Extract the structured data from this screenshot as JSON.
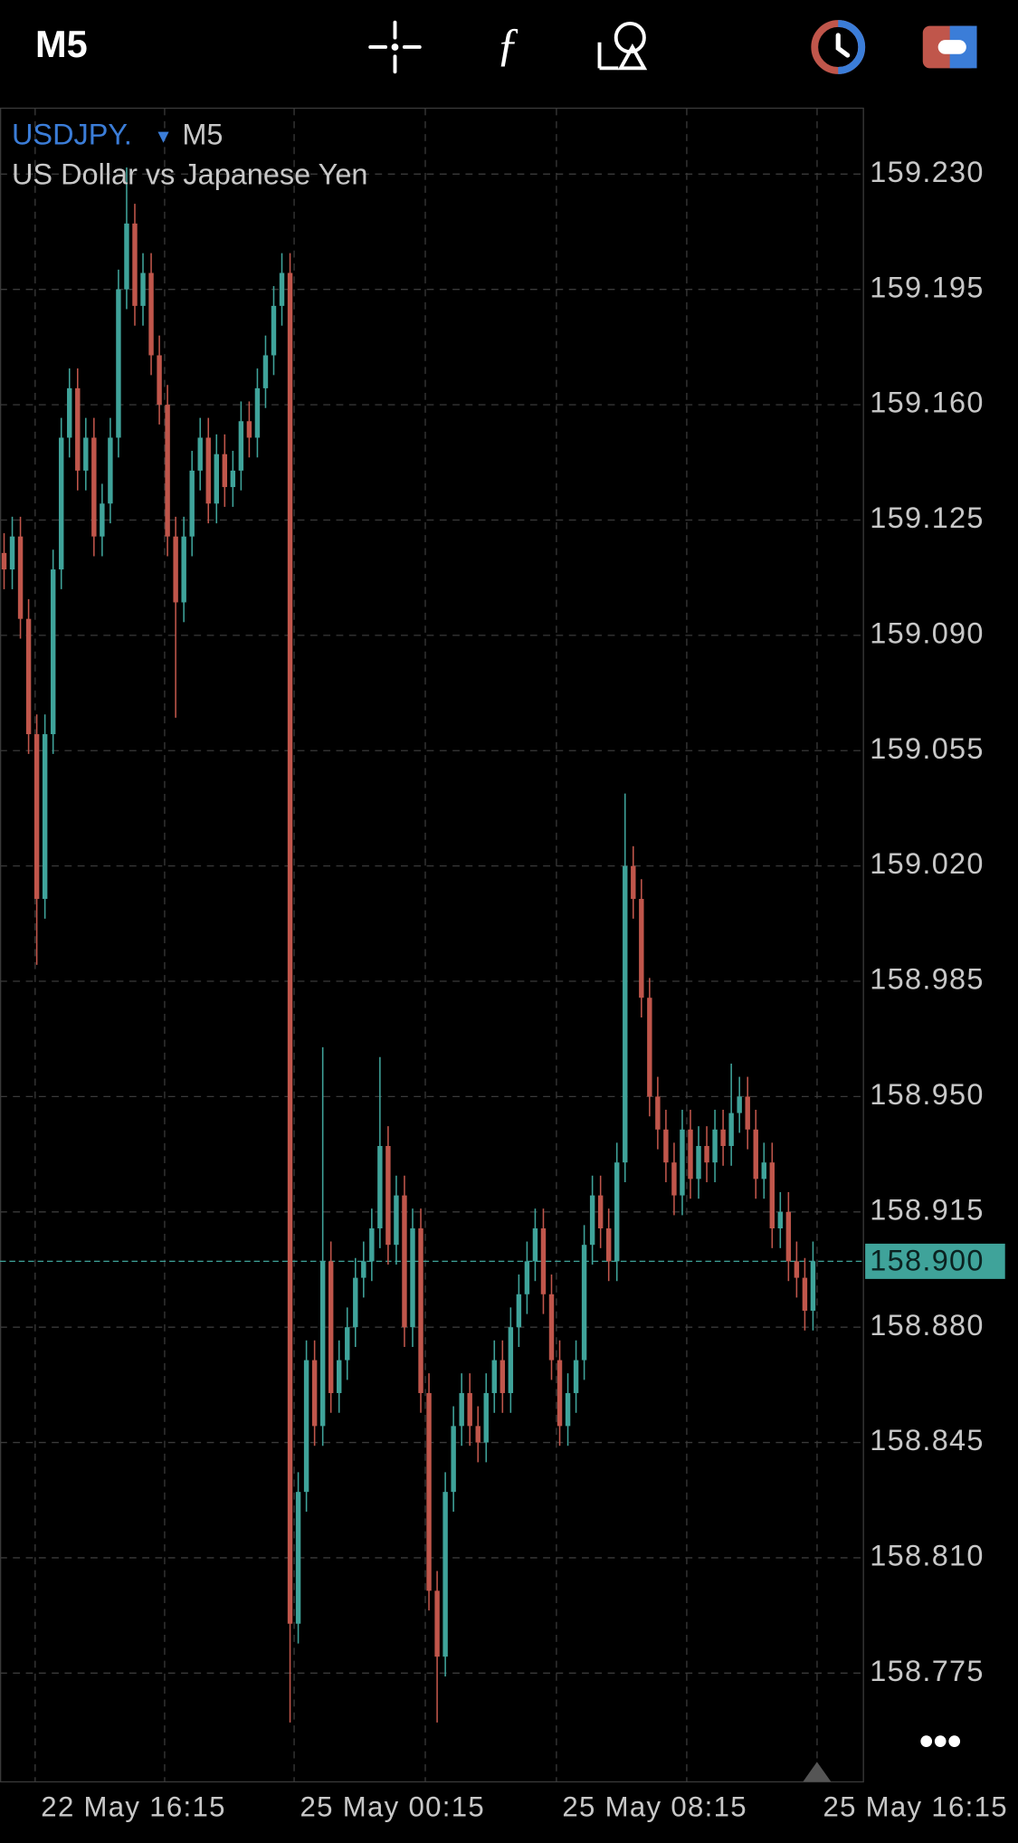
{
  "toolbar": {
    "timeframe": "M5"
  },
  "chart_data": {
    "type": "candlestick",
    "title": "USDJPY.",
    "timeframe": "M5",
    "subtitle": "US Dollar vs Japanese Yen",
    "up_color": "#3fa39a",
    "down_color": "#c0564b",
    "grid": true,
    "xlim": [
      0,
      105.6
    ],
    "xticks": [
      {
        "value": 4.3,
        "label": "22 May 16:15"
      },
      {
        "value": 36,
        "label": "25 May 00:15"
      },
      {
        "value": 68.1,
        "label": "25 May 08:15"
      },
      {
        "value": 100,
        "label": "25 May 16:15"
      }
    ],
    "ylim": [
      158.742,
      159.25
    ],
    "yticks": [
      {
        "value": 159.23,
        "label": "159.230"
      },
      159.195,
      {
        "value": 159.16,
        "label": "159.160"
      },
      159.125,
      {
        "value": 159.09,
        "label": "159.090"
      },
      159.055,
      {
        "value": 159.02,
        "label": "159.020"
      },
      158.985,
      {
        "value": 158.95,
        "label": "158.950"
      },
      158.915,
      {
        "value": 158.88,
        "label": "158.880"
      },
      158.845,
      {
        "value": 158.81,
        "label": "158.810"
      },
      158.775
    ],
    "last_price": {
      "value": 158.9,
      "label": "158.900"
    },
    "open": [
      159.115,
      159.11,
      159.12,
      159.095,
      159.06,
      159.01,
      159.06,
      159.11,
      159.15,
      159.165,
      159.14,
      159.15,
      159.12,
      159.13,
      159.15,
      159.195,
      159.215,
      159.19,
      159.2,
      159.175,
      159.16,
      159.12,
      159.1,
      159.12,
      159.14,
      159.15,
      159.13,
      159.145,
      159.135,
      159.14,
      159.155,
      159.15,
      159.165,
      159.175,
      159.19,
      159.2,
      158.79,
      158.83,
      158.87,
      158.85,
      158.9,
      158.86,
      158.87,
      158.88,
      158.895,
      158.9,
      158.91,
      158.935,
      158.905,
      158.92,
      158.88,
      158.91,
      158.86,
      158.8,
      158.78,
      158.83,
      158.85,
      158.86,
      158.85,
      158.845,
      158.86,
      158.87,
      158.86,
      158.88,
      158.89,
      158.9,
      158.91,
      158.89,
      158.87,
      158.85,
      158.86,
      158.87,
      158.905,
      158.92,
      158.91,
      158.9,
      158.93,
      159.02,
      159.01,
      158.98,
      158.95,
      158.94,
      158.93,
      158.92,
      158.94,
      158.925,
      158.935,
      158.93,
      158.94,
      158.935,
      158.945,
      158.95,
      158.94,
      158.925,
      158.93,
      158.91,
      158.915,
      158.9,
      158.895,
      158.885
    ],
    "high": [
      159.121,
      159.126,
      159.126,
      159.101,
      159.066,
      159.066,
      159.116,
      159.156,
      159.171,
      159.171,
      159.156,
      159.156,
      159.136,
      159.156,
      159.201,
      159.232,
      159.221,
      159.206,
      159.206,
      159.181,
      159.166,
      159.126,
      159.126,
      159.146,
      159.156,
      159.156,
      159.151,
      159.151,
      159.146,
      159.161,
      159.161,
      159.171,
      159.181,
      159.196,
      159.206,
      159.206,
      158.836,
      158.876,
      158.876,
      158.965,
      158.906,
      158.876,
      158.886,
      158.901,
      158.906,
      158.916,
      158.962,
      158.941,
      158.926,
      158.926,
      158.916,
      158.916,
      158.866,
      158.806,
      158.836,
      158.856,
      158.866,
      158.866,
      158.856,
      158.866,
      158.876,
      158.876,
      158.886,
      158.896,
      158.906,
      158.916,
      158.916,
      158.896,
      158.876,
      158.866,
      158.876,
      158.911,
      158.926,
      158.926,
      158.916,
      158.936,
      159.042,
      159.026,
      159.016,
      158.986,
      158.956,
      158.946,
      158.936,
      158.946,
      158.946,
      158.941,
      158.941,
      158.946,
      158.946,
      158.96,
      158.956,
      158.956,
      158.946,
      158.936,
      158.936,
      158.921,
      158.921,
      158.906,
      158.901,
      158.906
    ],
    "low": [
      159.104,
      159.104,
      159.089,
      159.054,
      158.99,
      159.004,
      159.054,
      159.104,
      159.144,
      159.134,
      159.134,
      159.114,
      159.114,
      159.124,
      159.144,
      159.189,
      159.184,
      159.184,
      159.169,
      159.154,
      159.114,
      159.065,
      159.094,
      159.114,
      159.134,
      159.124,
      159.124,
      159.129,
      159.129,
      159.134,
      159.144,
      159.144,
      159.159,
      159.169,
      159.184,
      158.76,
      158.784,
      158.824,
      158.844,
      158.844,
      158.854,
      158.854,
      158.864,
      158.874,
      158.889,
      158.894,
      158.904,
      158.899,
      158.899,
      158.874,
      158.874,
      158.854,
      158.794,
      158.76,
      158.774,
      158.824,
      158.844,
      158.844,
      158.839,
      158.839,
      158.854,
      158.854,
      158.854,
      158.874,
      158.884,
      158.894,
      158.884,
      158.864,
      158.844,
      158.844,
      158.854,
      158.864,
      158.899,
      158.904,
      158.894,
      158.894,
      158.924,
      159.004,
      158.974,
      158.944,
      158.934,
      158.924,
      158.914,
      158.914,
      158.919,
      158.919,
      158.924,
      158.924,
      158.929,
      158.929,
      158.939,
      158.934,
      158.919,
      158.919,
      158.904,
      158.904,
      158.894,
      158.889,
      158.879,
      158.879
    ],
    "close": [
      159.11,
      159.12,
      159.095,
      159.06,
      159.01,
      159.06,
      159.11,
      159.15,
      159.165,
      159.14,
      159.15,
      159.12,
      159.13,
      159.15,
      159.195,
      159.215,
      159.19,
      159.2,
      159.175,
      159.16,
      159.12,
      159.1,
      159.12,
      159.14,
      159.15,
      159.13,
      159.145,
      159.135,
      159.14,
      159.155,
      159.15,
      159.165,
      159.175,
      159.19,
      159.2,
      158.79,
      158.83,
      158.87,
      158.85,
      158.9,
      158.86,
      158.87,
      158.88,
      158.895,
      158.9,
      158.91,
      158.935,
      158.905,
      158.92,
      158.88,
      158.91,
      158.86,
      158.8,
      158.78,
      158.83,
      158.85,
      158.86,
      158.85,
      158.845,
      158.86,
      158.87,
      158.86,
      158.88,
      158.89,
      158.9,
      158.91,
      158.89,
      158.87,
      158.85,
      158.86,
      158.87,
      158.905,
      158.92,
      158.91,
      158.9,
      158.93,
      159.02,
      159.01,
      158.98,
      158.95,
      158.94,
      158.93,
      158.92,
      158.94,
      158.925,
      158.935,
      158.93,
      158.94,
      158.935,
      158.945,
      158.95,
      158.94,
      158.925,
      158.93,
      158.91,
      158.915,
      158.9,
      158.895,
      158.885,
      158.9
    ]
  }
}
